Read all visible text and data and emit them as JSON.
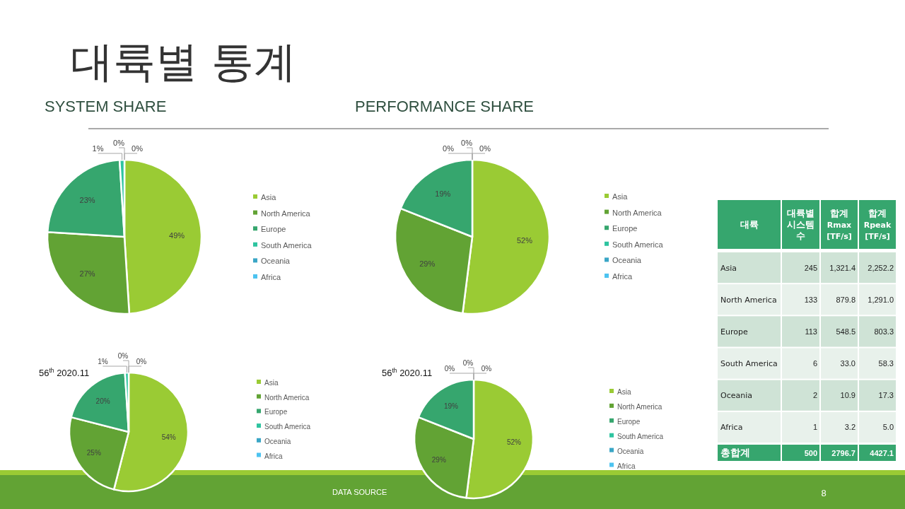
{
  "chart_data": [
    {
      "type": "pie",
      "title": "대륙별 통계",
      "subtitle": "SYSTEM SHARE",
      "categories": [
        "Asia",
        "North America",
        "Europe",
        "South America",
        "Oceania",
        "Africa"
      ],
      "values": [
        49,
        27,
        23,
        1,
        0,
        0
      ],
      "value_labels": [
        "49%",
        "27%",
        "23%",
        "1%",
        "0%",
        "0%"
      ],
      "colors": [
        "#9acb34",
        "#62a334",
        "#36a66e",
        "#2ec4a0",
        "#3aa6c6",
        "#4dc3f0"
      ],
      "legend": "right",
      "annotations": [
        "DATA SOURCE",
        "8"
      ]
    },
    {
      "type": "pie",
      "title": "PERFORMANCE SHARE",
      "categories": [
        "Asia",
        "North America",
        "Europe",
        "South America",
        "Oceania",
        "Africa"
      ],
      "values": [
        52,
        29,
        19,
        0,
        0,
        0
      ],
      "value_labels": [
        "52%",
        "29%",
        "19%",
        "0%",
        "0%",
        "0%"
      ],
      "colors": [
        "#9acb34",
        "#62a334",
        "#36a66e",
        "#2ec4a0",
        "#3aa6c6",
        "#4dc3f0"
      ],
      "legend": "right"
    },
    {
      "type": "pie",
      "title": "56$^{th}$ 2020.11",
      "categories": [
        "Asia",
        "North America",
        "Europe",
        "South America",
        "Oceania",
        "Africa"
      ],
      "values": [
        54,
        25,
        20,
        1,
        0,
        0
      ],
      "value_labels": [
        "54%",
        "25%",
        "20%",
        "1%",
        "0%",
        "0%"
      ],
      "colors": [
        "#9acb34",
        "#62a334",
        "#36a66e",
        "#2ec4a0",
        "#3aa6c6",
        "#4dc3f0"
      ],
      "legend": "right"
    },
    {
      "type": "pie",
      "title": "56$^{th}$ 2020.11",
      "categories": [
        "Asia",
        "North America",
        "Europe",
        "South America",
        "Oceania",
        "Africa"
      ],
      "values": [
        52,
        29,
        19,
        0,
        0,
        0
      ],
      "value_labels": [
        "52%",
        "29%",
        "19%",
        "0%",
        "0%",
        "0%"
      ],
      "colors": [
        "#9acb34",
        "#62a334",
        "#36a66e",
        "#2ec4a0",
        "#3aa6c6",
        "#4dc3f0"
      ],
      "legend": "right"
    },
    {
      "type": "other",
      "annotations": [
        "대륙",
        "대륙별 시스템 수",
        "합계 Rmax [TF/s]",
        "합계 Rpeak [TF/s]",
        "Asia",
        "245",
        "1,321.4",
        "2,252.2",
        "North America",
        "133",
        "879.8",
        "1,291.0",
        "Europe",
        "113",
        "548.5",
        "803.3",
        "South America",
        "6",
        "33.0",
        "58.3",
        "Oceania",
        "2",
        "10.9",
        "17.3",
        "Africa",
        "1",
        "3.2",
        "5.0",
        "총합계",
        "500",
        "2796.7",
        "4427.1"
      ]
    }
  ]
}
